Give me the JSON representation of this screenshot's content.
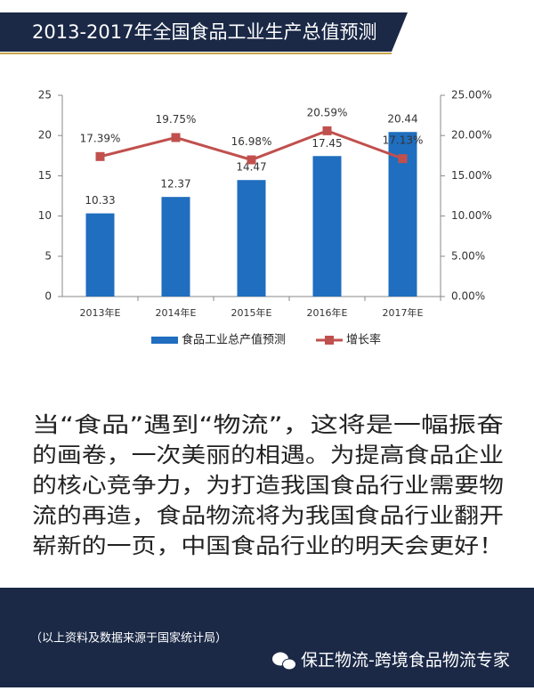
{
  "header": {
    "title": "2013-2017年全国食品工业生产总值预测"
  },
  "chart_data": {
    "type": "bar",
    "categories": [
      "2013年E",
      "2014年E",
      "2015年E",
      "2016年E",
      "2017年E"
    ],
    "series": [
      {
        "name": "食品工业总产值预测",
        "type": "bar",
        "color": "#1f6ebf",
        "values": [
          10.33,
          12.37,
          14.47,
          17.45,
          20.44
        ]
      },
      {
        "name": "增长率",
        "type": "line",
        "axis": "y2",
        "color": "#c0504d",
        "values": [
          17.39,
          19.75,
          16.98,
          20.59,
          17.13
        ],
        "value_labels": [
          "17.39%",
          "19.75%",
          "16.98%",
          "20.59%",
          "17.13%"
        ]
      }
    ],
    "ylim": [
      0,
      25
    ],
    "yticks": [
      0,
      5,
      10,
      15,
      20,
      25
    ],
    "y2lim": [
      0,
      25
    ],
    "y2ticks": [
      {
        "value": 0,
        "label": "0.00%"
      },
      {
        "value": 5,
        "label": "5.00%"
      },
      {
        "value": 10,
        "label": "10.00%"
      },
      {
        "value": 15,
        "label": "15.00%"
      },
      {
        "value": 20,
        "label": "20.00%"
      },
      {
        "value": 25,
        "label": "25.00%"
      }
    ],
    "legend": "bottom"
  },
  "body": {
    "lines": [
      "当“食品”遇到“物流”，这将是一幅振奋",
      "的画卷，一次美丽的相遇。为提高食品企业",
      "的核心竞争力，为打造我国食品行业需要物",
      "流的再造，食品物流将为我国食品行业翻开",
      "崭新的一页，中国食品行业的明天会更好！"
    ]
  },
  "footer": {
    "source": "（以上资料及数据来源于国家统计局）",
    "brand": "保正物流-跨境食品物流专家"
  }
}
